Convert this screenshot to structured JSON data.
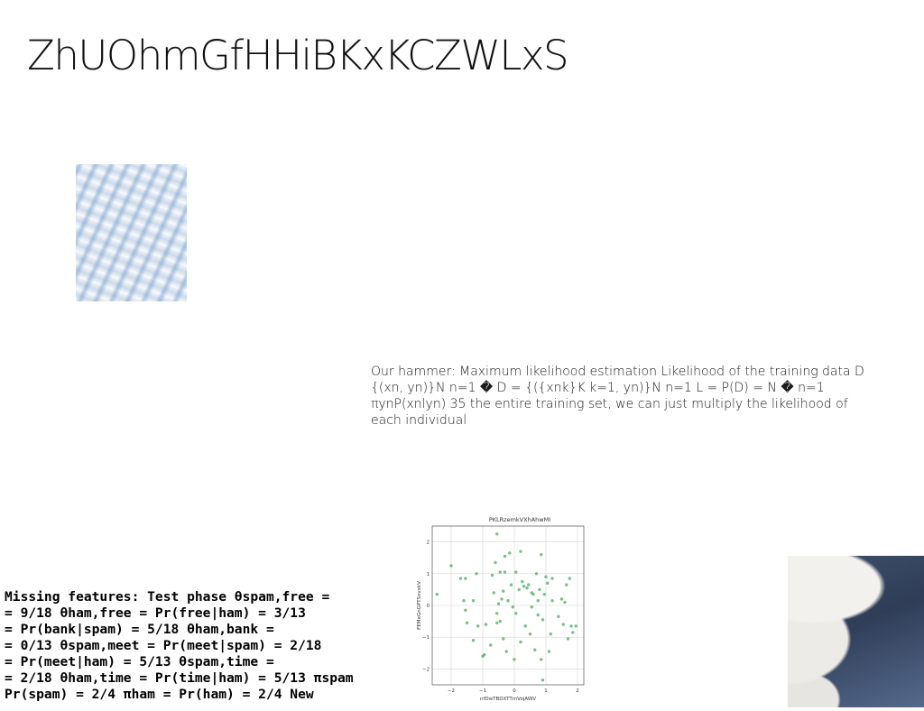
{
  "slide": {
    "title": "ZhUOhmGfHHiBKxKCZWLxS",
    "paragraph": "Our hammer: Maximum likelihood estimation Likelihood of the training data D {(xn, yn)}N n=1 � D = {({xnk}K k=1, yn)}N n=1 L = P(D) = N � n=1 πynP(xnlyn) 35 the entire training set, we can just multiply the likelihood of each individual",
    "bold_lines": [
      "Missing features: Test phase θspam,free =",
      "= 9/18 θham,free = Pr(free|ham) = 3/13",
      "= Pr(bank|spam) = 5/18 θham,bank =",
      "= 0/13 θspam,meet = Pr(meet|spam) = 2/18",
      "= Pr(meet|ham) = 5/13 θspam,time =",
      "= 2/18 θham,time = Pr(time|ham) = 5/13 πspam",
      "Pr(spam) = 2/4 πham = Pr(ham) = 2/4 New"
    ]
  },
  "chart_data": {
    "type": "scatter",
    "title": "PKLRzemkVXhAhwMI",
    "xlabel": "nfDwTBDXTTmVojAWV",
    "ylabel": "FEMeGnGPTSxvxkV",
    "xlim": [
      -2.6,
      2.2
    ],
    "ylim": [
      -2.5,
      2.5
    ],
    "xticks": [
      -2,
      -1,
      0,
      1,
      2
    ],
    "yticks": [
      -2,
      -1,
      0,
      1,
      2
    ],
    "grid": true,
    "color": "#4aab62",
    "points": [
      [
        -2.45,
        0.35
      ],
      [
        -2.0,
        1.25
      ],
      [
        -1.7,
        0.85
      ],
      [
        -1.55,
        0.85
      ],
      [
        -1.6,
        0.15
      ],
      [
        -1.55,
        -0.15
      ],
      [
        -1.5,
        -0.55
      ],
      [
        -1.3,
        -1.1
      ],
      [
        -1.3,
        0.15
      ],
      [
        -1.2,
        1.0
      ],
      [
        -1.0,
        -1.6
      ],
      [
        -0.95,
        -1.55
      ],
      [
        -0.9,
        -0.6
      ],
      [
        -0.75,
        -1.25
      ],
      [
        -0.7,
        0.95
      ],
      [
        -0.65,
        0.4
      ],
      [
        -0.6,
        1.35
      ],
      [
        -0.55,
        2.25
      ],
      [
        -0.55,
        -0.25
      ],
      [
        -0.55,
        -0.55
      ],
      [
        -0.5,
        0.05
      ],
      [
        -0.45,
        1.05
      ],
      [
        -0.45,
        -0.5
      ],
      [
        -0.4,
        0.2
      ],
      [
        -0.35,
        0.45
      ],
      [
        -0.3,
        1.55
      ],
      [
        -0.3,
        1.05
      ],
      [
        -0.25,
        -1.45
      ],
      [
        -0.2,
        0.15
      ],
      [
        -0.15,
        1.65
      ],
      [
        -0.1,
        0.65
      ],
      [
        -0.05,
        -0.05
      ],
      [
        0.05,
        -0.25
      ],
      [
        0.05,
        1.05
      ],
      [
        0.15,
        0.5
      ],
      [
        0.2,
        1.7
      ],
      [
        0.2,
        -1.15
      ],
      [
        0.25,
        0.75
      ],
      [
        0.3,
        0.6
      ],
      [
        0.35,
        -0.65
      ],
      [
        0.4,
        0.55
      ],
      [
        0.45,
        0.65
      ],
      [
        0.5,
        -0.9
      ],
      [
        0.55,
        0.4
      ],
      [
        0.6,
        0.35
      ],
      [
        0.65,
        -1.4
      ],
      [
        0.7,
        1.0
      ],
      [
        0.75,
        0.15
      ],
      [
        0.75,
        -0.3
      ],
      [
        0.8,
        0.5
      ],
      [
        0.85,
        -1.7
      ],
      [
        0.85,
        1.6
      ],
      [
        0.9,
        -0.45
      ],
      [
        0.95,
        0.35
      ],
      [
        1.0,
        0.9
      ],
      [
        1.05,
        0.7
      ],
      [
        1.1,
        -1.45
      ],
      [
        1.15,
        -0.9
      ],
      [
        1.2,
        0.85
      ],
      [
        1.2,
        0.15
      ],
      [
        1.4,
        -0.35
      ],
      [
        1.5,
        0.2
      ],
      [
        1.55,
        -0.6
      ],
      [
        1.6,
        0.1
      ],
      [
        1.65,
        0.65
      ],
      [
        1.7,
        -1.05
      ],
      [
        1.75,
        0.85
      ],
      [
        1.8,
        -0.65
      ],
      [
        1.85,
        -0.85
      ],
      [
        1.95,
        -0.65
      ],
      [
        -0.35,
        -1.05
      ],
      [
        0.9,
        -2.35
      ],
      [
        0.55,
        -0.05
      ],
      [
        -1.15,
        -0.65
      ],
      [
        0.0,
        -1.7
      ]
    ]
  }
}
